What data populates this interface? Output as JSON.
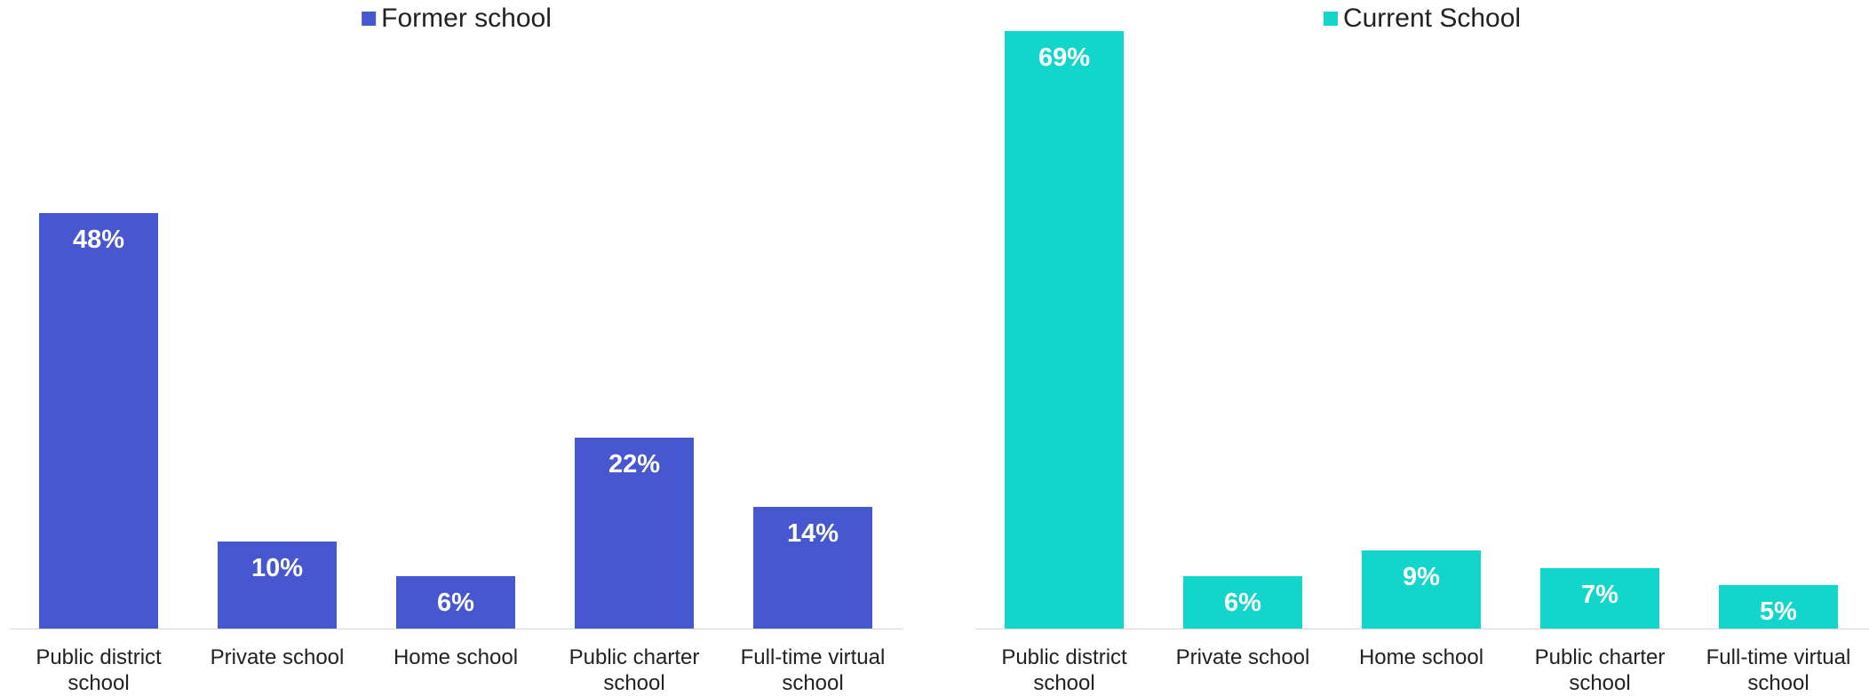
{
  "chart_data": [
    {
      "type": "bar",
      "categories": [
        "Public district school",
        "Private school",
        "Home school",
        "Public charter school",
        "Full-time virtual school"
      ],
      "series": [
        {
          "name": "Former school",
          "color": "#4657d0",
          "values": [
            48,
            10,
            6,
            22,
            14
          ],
          "value_labels": [
            "48%",
            "10%",
            "6%",
            "22%",
            "14%"
          ]
        }
      ]
    },
    {
      "type": "bar",
      "categories": [
        "Public district school",
        "Private school",
        "Home school",
        "Public charter school",
        "Full-time virtual school"
      ],
      "series": [
        {
          "name": "Current School",
          "color": "#12d6cc",
          "values": [
            69,
            6,
            9,
            7,
            5
          ],
          "value_labels": [
            "69%",
            "6%",
            "9%",
            "7%",
            "5%"
          ]
        }
      ]
    }
  ]
}
